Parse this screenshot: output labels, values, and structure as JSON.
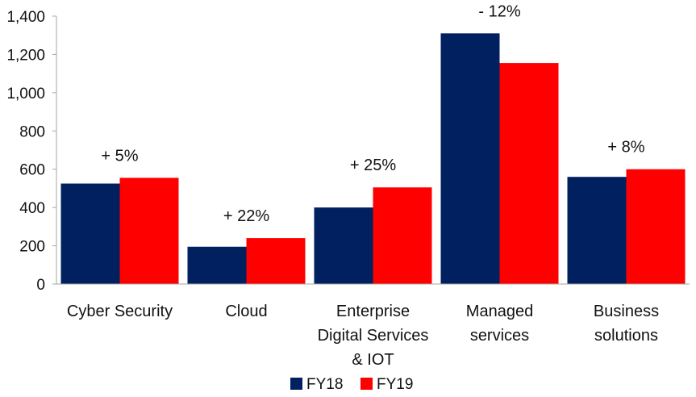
{
  "chart_data": {
    "type": "bar",
    "categories": [
      [
        "Cyber Security"
      ],
      [
        "Cloud"
      ],
      [
        "Enterprise",
        "Digital Services",
        "& IOT"
      ],
      [
        "Managed",
        "services"
      ],
      [
        "Business",
        "solutions"
      ]
    ],
    "series": [
      {
        "name": "FY18",
        "color": "#002060",
        "values": [
          525,
          195,
          400,
          1310,
          560
        ]
      },
      {
        "name": "FY19",
        "color": "#ff0000",
        "values": [
          555,
          240,
          505,
          1155,
          600
        ]
      }
    ],
    "change_labels": [
      "+ 5%",
      "+ 22%",
      "+ 25%",
      "- 12%",
      "+ 8%"
    ],
    "ylim": [
      0,
      1400
    ],
    "yticks": [
      0,
      200,
      400,
      600,
      800,
      1000,
      1200,
      1400
    ],
    "ytick_labels": [
      "0",
      "200",
      "400",
      "600",
      "800",
      "1,000",
      "1,200",
      "1,400"
    ],
    "grid": false,
    "legend_position": "bottom-center"
  }
}
